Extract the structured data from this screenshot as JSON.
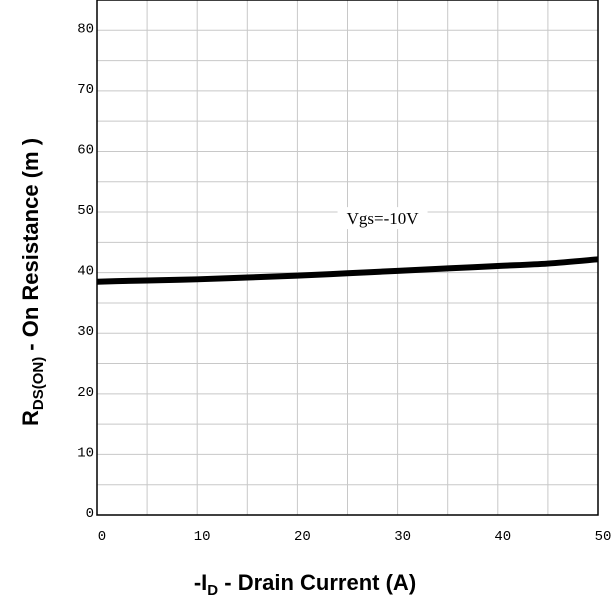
{
  "chart_data": {
    "type": "line",
    "x": [
      0,
      2,
      5,
      10,
      15,
      20,
      25,
      30,
      35,
      40,
      45,
      50
    ],
    "series": [
      {
        "values": [
          38.5,
          38.6,
          38.7,
          38.9,
          39.2,
          39.5,
          39.9,
          40.3,
          40.7,
          41.1,
          41.5,
          42.2
        ]
      }
    ],
    "xlim": [
      0,
      50
    ],
    "ylim": [
      0,
      85
    ],
    "xticks": [
      "0",
      "10",
      "20",
      "30",
      "40",
      "50"
    ],
    "yticks": [
      "0",
      "10",
      "20",
      "30",
      "40",
      "50",
      "60",
      "70",
      "80"
    ],
    "xlabel": {
      "prefix": "-I",
      "sub": "D",
      "suffix": " - Drain Current (A)"
    },
    "ylabel": {
      "prefix": "R",
      "sub": "DS(ON)",
      "suffix": " - On Resistance (m   )"
    },
    "annotation": {
      "text": "Vgs=-10V",
      "x": 28.5,
      "y": 49
    },
    "grid": true,
    "colors": {
      "line": "#000000",
      "grid": "#c8c8c8",
      "frame": "#000000"
    }
  }
}
